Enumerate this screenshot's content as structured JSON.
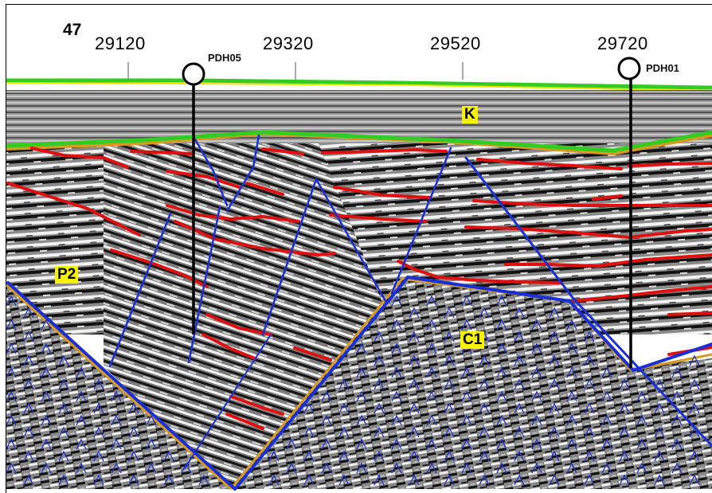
{
  "line_number": "47",
  "stations": [
    {
      "label": "29120"
    },
    {
      "label": "29320"
    },
    {
      "label": "29520"
    },
    {
      "label": "29720"
    }
  ],
  "wells": [
    {
      "name": "PDH05"
    },
    {
      "name": "PDH01"
    }
  ],
  "units": [
    {
      "label": "K"
    },
    {
      "label": "P2"
    },
    {
      "label": "C1"
    }
  ],
  "colors": {
    "horizon": "#e01010",
    "fault": "#1a2fd6",
    "surface_green": "#33cc22",
    "surface_yellow": "#f0e000",
    "basement_orange": "#d99a20",
    "label_bg": "#f7f300",
    "basement_symbol": "#2233cc"
  }
}
